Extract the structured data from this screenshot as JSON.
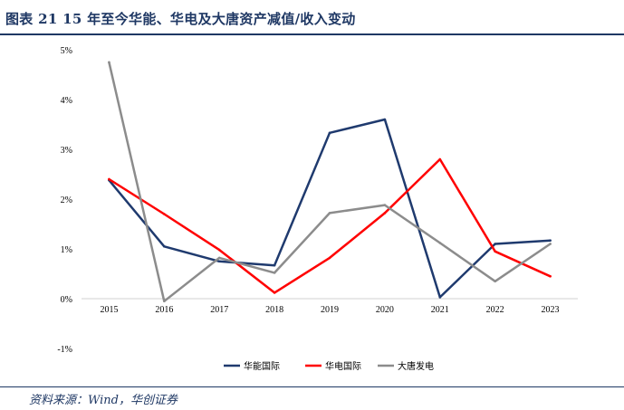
{
  "header": {
    "title": "图表 21 15 年至今华能、华电及大唐资产减值/收入变动"
  },
  "footer": {
    "source": "资料来源：Wind，华创证券"
  },
  "chart_data": {
    "type": "line",
    "title": "",
    "xlabel": "",
    "ylabel": "",
    "x": [
      "2015",
      "2016",
      "2017",
      "2018",
      "2019",
      "2020",
      "2021",
      "2022",
      "2023"
    ],
    "ylim": [
      -1,
      5
    ],
    "yticks": [
      "5%",
      "4%",
      "3%",
      "2%",
      "1%",
      "0%",
      "-1%"
    ],
    "ytick_values": [
      5,
      4,
      3,
      2,
      1,
      0,
      -1
    ],
    "grid": false,
    "legend": "bottom",
    "series": [
      {
        "name": "华能国际",
        "color": "#1f3a6e",
        "values": [
          2.38,
          1.05,
          0.75,
          0.67,
          3.33,
          3.6,
          0.03,
          1.1,
          1.17
        ]
      },
      {
        "name": "华电国际",
        "color": "#ff0000",
        "values": [
          2.4,
          1.7,
          0.98,
          0.12,
          0.82,
          1.72,
          2.8,
          0.95,
          0.45
        ]
      },
      {
        "name": "大唐发电",
        "color": "#8c8c8c",
        "values": [
          4.75,
          -0.05,
          0.82,
          0.52,
          1.72,
          1.88,
          1.12,
          0.35,
          1.1
        ]
      }
    ]
  }
}
